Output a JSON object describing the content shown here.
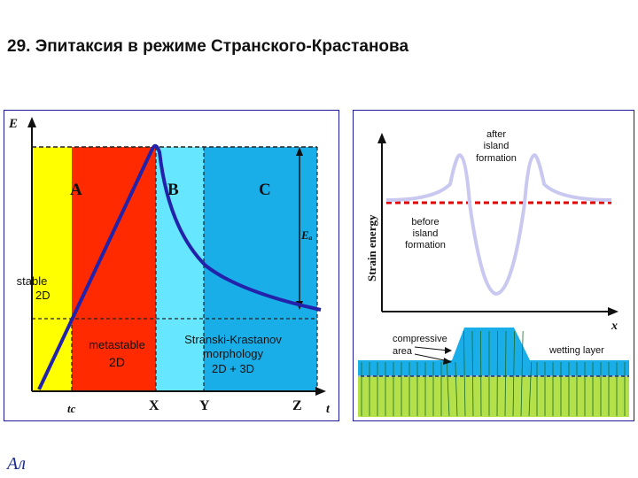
{
  "slide": {
    "title": "29. Эпитаксия в режиме Странского-Крастанова"
  },
  "left_diagram": {
    "axis_e": "E",
    "axis_t": "t",
    "region_a": "A",
    "region_b": "B",
    "region_c": "C",
    "e_label": "Eₐ",
    "stable_line1": "stable",
    "stable_line2": "2D",
    "metastable_line1": "metastable",
    "metastable_line2": "2D",
    "sk_line1": "Stranski-Krastanov",
    "sk_line2": "morphology",
    "sk_line3": "2D + 3D",
    "tick_tc": "tc",
    "tick_x": "X",
    "tick_y": "Y",
    "tick_z": "Z",
    "colors": {
      "yellow": "#ffff00",
      "red": "#ff2a00",
      "cyan": "#66e6ff",
      "blue": "#1aaee8",
      "curve": "#2222aa"
    }
  },
  "right_diagram": {
    "y_axis_label": "Strain energy",
    "x_axis_label": "x",
    "after_line1": "after",
    "after_line2": "island",
    "after_line3": "formation",
    "before_line1": "before",
    "before_line2": "island",
    "before_line3": "formation",
    "compressive_line1": "compressive",
    "compressive_line2": "area",
    "wetting_layer": "wetting layer",
    "colors": {
      "curve": "#c8c8f0",
      "dashed": "#e00000",
      "island": "#1aaee8",
      "substrate": "#b4e04a"
    }
  },
  "logo_text": "Ал"
}
